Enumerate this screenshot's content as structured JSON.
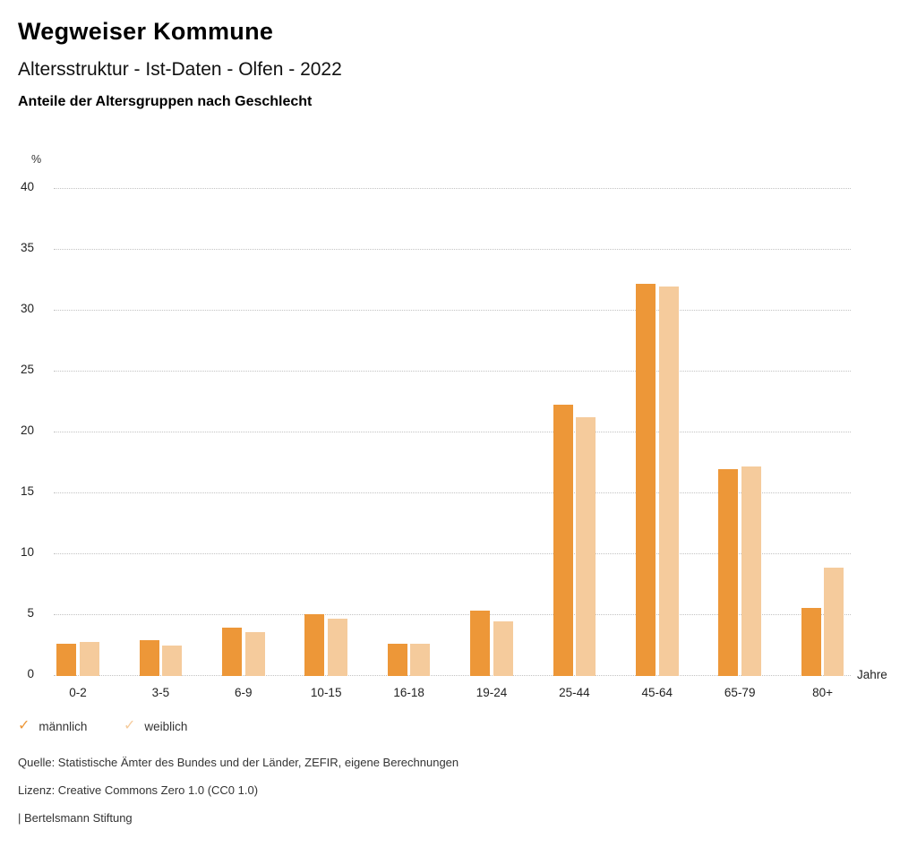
{
  "header": {
    "title": "Wegweiser Kommune",
    "subtitle": "Altersstruktur - Ist-Daten - Olfen - 2022",
    "chart_heading": "Anteile der Altersgruppen nach Geschlecht"
  },
  "chart_data": {
    "type": "bar",
    "title": "Anteile der Altersgruppen nach Geschlecht",
    "xlabel": "Jahre",
    "ylabel": "%",
    "categories": [
      "0-2",
      "3-5",
      "6-9",
      "10-15",
      "16-18",
      "19-24",
      "25-44",
      "45-64",
      "65-79",
      "80+"
    ],
    "series": [
      {
        "name": "männlich",
        "color": "#ED9738",
        "values": [
          2.6,
          2.9,
          3.9,
          5.0,
          2.6,
          5.3,
          22.2,
          32.1,
          16.9,
          5.5
        ]
      },
      {
        "name": "weiblich",
        "color": "#F5CB9C",
        "values": [
          2.7,
          2.4,
          3.5,
          4.6,
          2.6,
          4.4,
          21.2,
          31.9,
          17.1,
          8.8
        ]
      }
    ],
    "ylim": [
      0,
      40
    ],
    "ytick_step": 5,
    "grid": "horizontal-dotted",
    "legend_position": "bottom-left"
  },
  "legend": {
    "items": [
      {
        "label": "männlich",
        "color": "#ED9738",
        "marker": "check"
      },
      {
        "label": "weiblich",
        "color": "#F5CB9C",
        "marker": "check"
      }
    ],
    "check_glyph": "✓"
  },
  "footer": {
    "source": "Quelle: Statistische Ämter des Bundes und der Länder, ZEFIR, eigene Berechnungen",
    "license": "Lizenz: Creative Commons Zero 1.0 (CC0 1.0)",
    "attribution": "| Bertelsmann Stiftung"
  }
}
